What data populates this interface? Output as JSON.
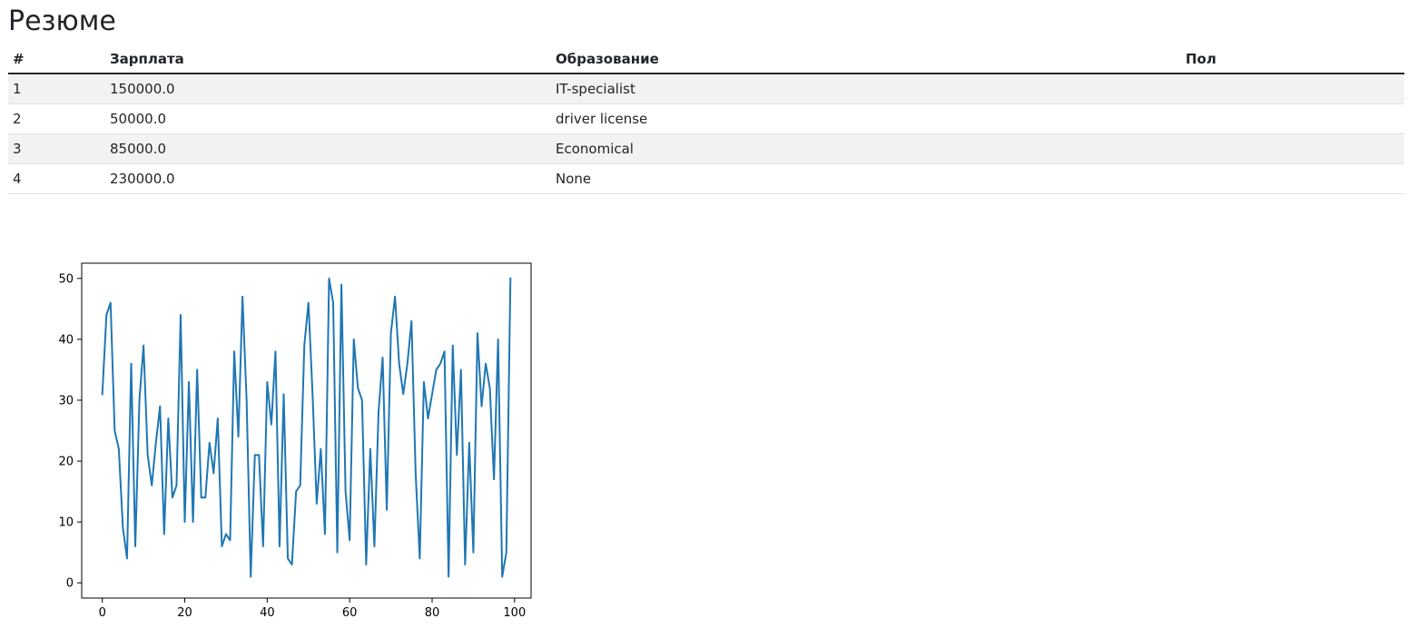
{
  "page": {
    "title": "Резюме"
  },
  "table": {
    "headers": {
      "num": "#",
      "salary": "Зарплата",
      "education": "Образование",
      "sex": "Пол"
    },
    "rows": [
      {
        "num": "1",
        "salary": "150000.0",
        "education": "IT-specialist",
        "sex": ""
      },
      {
        "num": "2",
        "salary": "50000.0",
        "education": "driver license",
        "sex": ""
      },
      {
        "num": "3",
        "salary": "85000.0",
        "education": "Economical",
        "sex": ""
      },
      {
        "num": "4",
        "salary": "230000.0",
        "education": "None",
        "sex": ""
      }
    ]
  },
  "chart_data": {
    "type": "line",
    "title": "",
    "xlabel": "",
    "ylabel": "",
    "xlim": [
      -5,
      104
    ],
    "ylim": [
      -2.5,
      52.5
    ],
    "xticks": [
      0,
      20,
      40,
      60,
      80,
      100
    ],
    "yticks": [
      0,
      10,
      20,
      30,
      40,
      50
    ],
    "grid": false,
    "color": "#1f77b4",
    "x": [
      0,
      1,
      2,
      3,
      4,
      5,
      6,
      7,
      8,
      9,
      10,
      11,
      12,
      13,
      14,
      15,
      16,
      17,
      18,
      19,
      20,
      21,
      22,
      23,
      24,
      25,
      26,
      27,
      28,
      29,
      30,
      31,
      32,
      33,
      34,
      35,
      36,
      37,
      38,
      39,
      40,
      41,
      42,
      43,
      44,
      45,
      46,
      47,
      48,
      49,
      50,
      51,
      52,
      53,
      54,
      55,
      56,
      57,
      58,
      59,
      60,
      61,
      62,
      63,
      64,
      65,
      66,
      67,
      68,
      69,
      70,
      71,
      72,
      73,
      74,
      75,
      76,
      77,
      78,
      79,
      80,
      81,
      82,
      83,
      84,
      85,
      86,
      87,
      88,
      89,
      90,
      91,
      92,
      93,
      94,
      95,
      96,
      97,
      98,
      99
    ],
    "values": [
      31,
      44,
      46,
      25,
      22,
      9,
      4,
      36,
      6,
      30,
      39,
      21,
      16,
      23,
      29,
      8,
      27,
      14,
      16,
      44,
      10,
      33,
      10,
      35,
      14,
      14,
      23,
      18,
      27,
      6,
      8,
      7,
      38,
      24,
      47,
      30,
      1,
      21,
      21,
      6,
      33,
      26,
      38,
      6,
      31,
      4,
      3,
      15,
      16,
      39,
      46,
      31,
      13,
      22,
      8,
      50,
      46,
      5,
      49,
      15,
      7,
      40,
      32,
      30,
      3,
      22,
      6,
      28,
      37,
      12,
      41,
      47,
      36,
      31,
      36,
      43,
      18,
      4,
      33,
      27,
      31,
      35,
      36,
      38,
      1,
      39,
      21,
      35,
      3,
      23,
      5,
      41,
      29,
      36,
      32,
      17,
      40,
      1,
      5,
      50
    ]
  }
}
